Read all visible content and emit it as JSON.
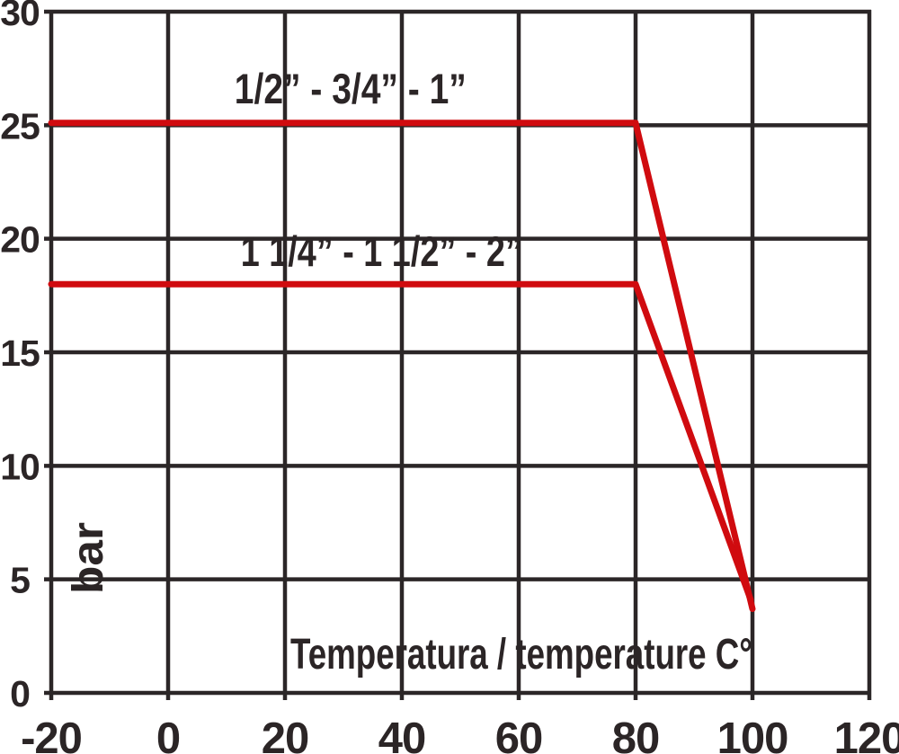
{
  "chart_data": {
    "type": "line",
    "title": "",
    "xlabel": "Temperatura / temperature C°",
    "ylabel": "bar",
    "xlim": [
      -20,
      120
    ],
    "ylim": [
      0,
      30
    ],
    "xticks": [
      "-20",
      "0",
      "20",
      "40",
      "60",
      "80",
      "100",
      "120"
    ],
    "xtick_values": [
      -20,
      0,
      20,
      40,
      60,
      80,
      100,
      120
    ],
    "yticks": [
      "0",
      "5",
      "10",
      "15",
      "20",
      "25",
      "30"
    ],
    "ytick_values": [
      0,
      5,
      10,
      15,
      20,
      25,
      30
    ],
    "grid": true,
    "legend_position": "inline-labels",
    "colors": {
      "line": "#D00B0F",
      "grid": "#2B2627",
      "text": "#2B2526",
      "background": "#FFFFFF"
    },
    "series": [
      {
        "name": "1/2” - 3/4” - 1”",
        "points": [
          [
            -20,
            25.1
          ],
          [
            80,
            25.1
          ],
          [
            100,
            3.7
          ]
        ],
        "label_pos": [
          31.2,
          25.96
        ]
      },
      {
        "name": "1 1/4” - 1 1/2” - 2”",
        "points": [
          [
            -20,
            18
          ],
          [
            80,
            18
          ],
          [
            99.7,
            4.1
          ]
        ],
        "label_pos": [
          36.5,
          18.8
        ]
      }
    ]
  }
}
